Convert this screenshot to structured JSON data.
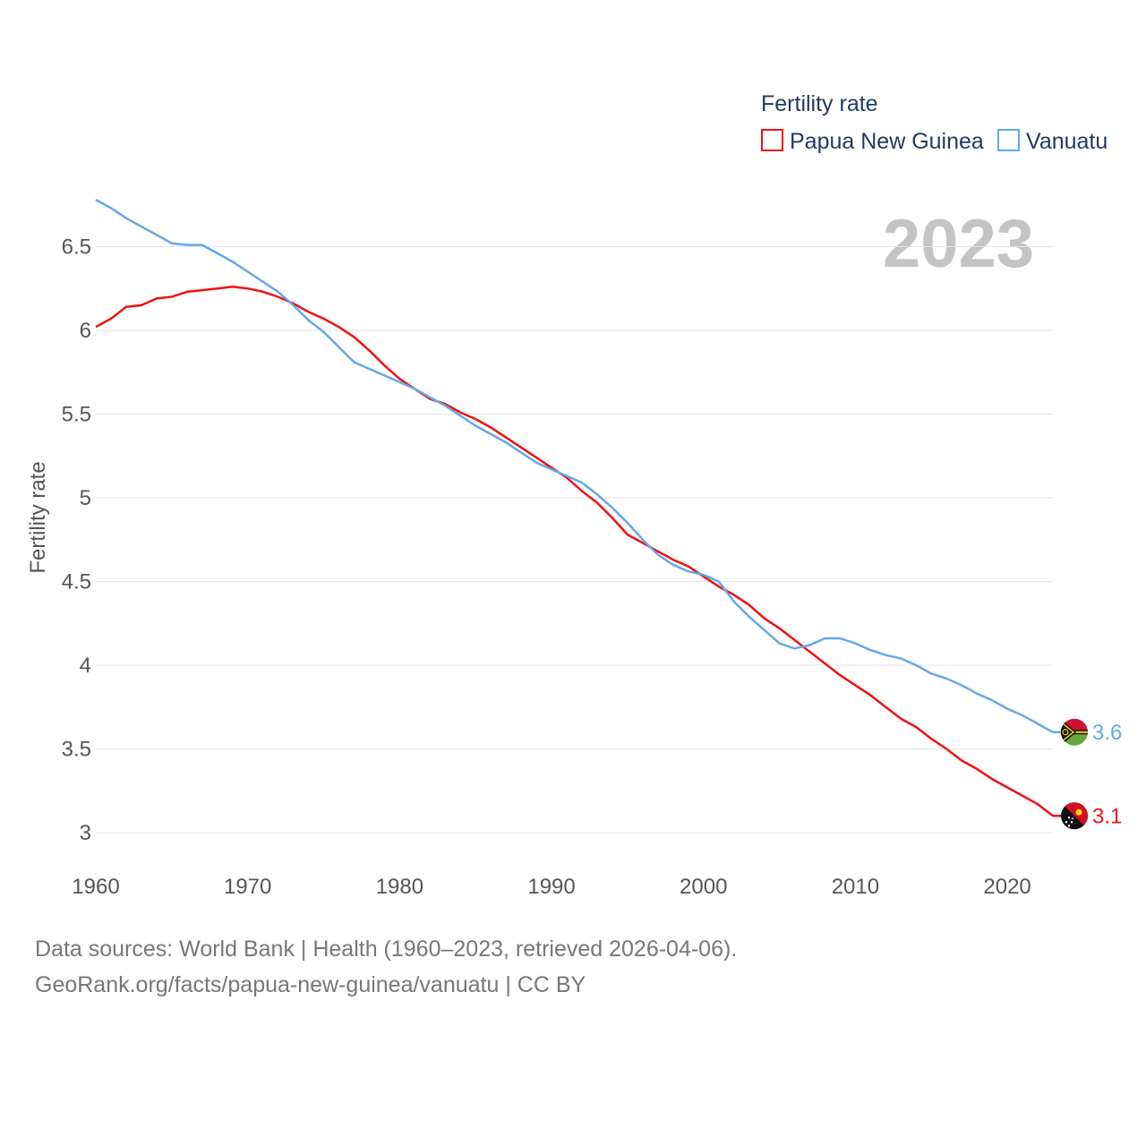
{
  "legend": {
    "title": "Fertility rate",
    "items": [
      {
        "label": "Papua New Guinea",
        "color": "#ee1111"
      },
      {
        "label": "Vanuatu",
        "color": "#64a8e8"
      }
    ]
  },
  "year_label": "2023",
  "footer": {
    "line1": "Data sources: World Bank | Health (1960–2023, retrieved 2026-04-06).",
    "line2": "GeoRank.org/facts/papua-new-guinea/vanuatu | CC BY"
  },
  "chart_data": {
    "type": "line",
    "ylabel": "Fertility rate",
    "xlabel": "",
    "xlim": [
      1960,
      2023
    ],
    "ylim": [
      2.85,
      6.85
    ],
    "x_ticks": [
      1960,
      1970,
      1980,
      1990,
      2000,
      2010,
      2020
    ],
    "y_ticks": [
      3,
      3.5,
      4,
      4.5,
      5,
      5.5,
      6,
      6.5
    ],
    "y_tick_labels": [
      "3",
      "3.5",
      "4",
      "4.5",
      "5",
      "5.5",
      "6",
      "6.5"
    ],
    "x": [
      1960,
      1961,
      1962,
      1963,
      1964,
      1965,
      1966,
      1967,
      1968,
      1969,
      1970,
      1971,
      1972,
      1973,
      1974,
      1975,
      1976,
      1977,
      1978,
      1979,
      1980,
      1981,
      1982,
      1983,
      1984,
      1985,
      1986,
      1987,
      1988,
      1989,
      1990,
      1991,
      1992,
      1993,
      1994,
      1995,
      1996,
      1997,
      1998,
      1999,
      2000,
      2001,
      2002,
      2003,
      2004,
      2005,
      2006,
      2007,
      2008,
      2009,
      2010,
      2011,
      2012,
      2013,
      2014,
      2015,
      2016,
      2017,
      2018,
      2019,
      2020,
      2021,
      2022,
      2023
    ],
    "series": [
      {
        "name": "Papua New Guinea",
        "color": "#ee1111",
        "end_label": "3.1",
        "values": [
          6.02,
          6.07,
          6.14,
          6.15,
          6.19,
          6.2,
          6.23,
          6.24,
          6.25,
          6.26,
          6.25,
          6.23,
          6.2,
          6.16,
          6.11,
          6.07,
          6.02,
          5.96,
          5.88,
          5.79,
          5.71,
          5.65,
          5.59,
          5.56,
          5.51,
          5.47,
          5.42,
          5.36,
          5.3,
          5.24,
          5.18,
          5.12,
          5.04,
          4.97,
          4.88,
          4.78,
          4.73,
          4.68,
          4.63,
          4.59,
          4.53,
          4.47,
          4.42,
          4.36,
          4.28,
          4.22,
          4.15,
          4.08,
          4.01,
          3.94,
          3.88,
          3.82,
          3.75,
          3.68,
          3.63,
          3.56,
          3.5,
          3.43,
          3.38,
          3.32,
          3.27,
          3.22,
          3.17,
          3.1
        ]
      },
      {
        "name": "Vanuatu",
        "color": "#64a8e8",
        "end_label": "3.6",
        "values": [
          6.78,
          6.73,
          6.67,
          6.62,
          6.57,
          6.52,
          6.51,
          6.51,
          6.46,
          6.41,
          6.35,
          6.29,
          6.23,
          6.15,
          6.06,
          5.99,
          5.9,
          5.81,
          5.77,
          5.73,
          5.69,
          5.65,
          5.6,
          5.55,
          5.49,
          5.43,
          5.38,
          5.33,
          5.27,
          5.21,
          5.17,
          5.13,
          5.09,
          5.02,
          4.94,
          4.85,
          4.75,
          4.66,
          4.6,
          4.56,
          4.54,
          4.5,
          4.38,
          4.29,
          4.21,
          4.13,
          4.1,
          4.12,
          4.16,
          4.16,
          4.13,
          4.09,
          4.06,
          4.04,
          4.0,
          3.95,
          3.92,
          3.88,
          3.83,
          3.79,
          3.74,
          3.7,
          3.65,
          3.6
        ]
      }
    ]
  }
}
